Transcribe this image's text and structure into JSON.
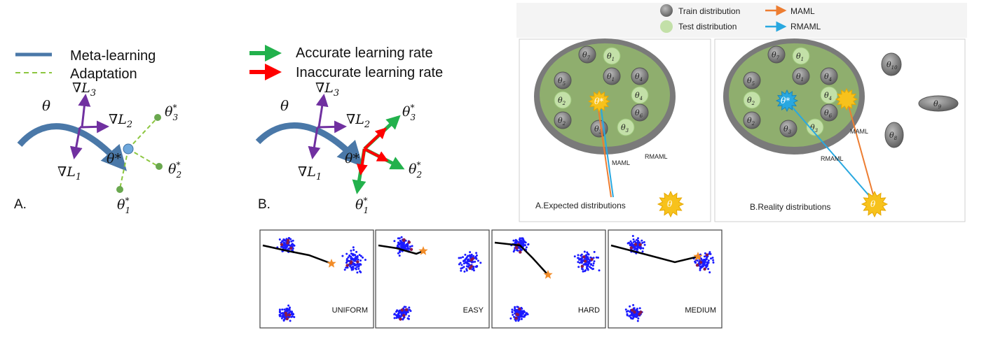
{
  "colors": {
    "meta": "#4a78a8",
    "adapt": "#8cc63f",
    "grad": "#7030a0",
    "accurate": "#22b14c",
    "inaccurate": "#ff0000",
    "train": "#6e6e6e",
    "test": "#c3e0a8",
    "maml": "#ed7d31",
    "rmaml": "#29a8e0",
    "star": "#f7c21c",
    "cluster": "#1b1bff",
    "trajectory": "#000000"
  },
  "panel_a": {
    "legend_meta": "Meta-learning",
    "legend_adapt": "Adaptation",
    "theta": "θ",
    "grad_l1": "∇L",
    "grad_l2": "∇L",
    "grad_l3": "∇L",
    "sub1": "1",
    "sub2": "2",
    "sub3": "3",
    "theta_star": "θ*",
    "t1": "θ",
    "t2": "θ",
    "t3": "θ",
    "star_sup": "*",
    "tag": "A."
  },
  "panel_b": {
    "legend_accurate": "Accurate learning rate",
    "legend_inaccurate": "Inaccurate learning rate",
    "theta": "θ",
    "grad_l1": "∇L",
    "grad_l2": "∇L",
    "grad_l3": "∇L",
    "theta_star": "θ*",
    "t1": "θ",
    "t2": "θ",
    "t3": "θ",
    "tag": "B."
  },
  "dist_legend": {
    "train": "Train distribution",
    "test": "Test distribution",
    "maml": "MAML",
    "rmaml": "RMAML"
  },
  "expected": {
    "caption": "A.Expected distributions",
    "maml": "MAML",
    "rmaml": "RMAML",
    "theta_star": "θ*",
    "theta": "θ"
  },
  "reality": {
    "caption": "B.Reality distributions",
    "maml": "MAML",
    "rmaml": "RMAML",
    "theta_star": "θ*",
    "theta": "θ"
  },
  "scatter_panels": [
    "UNIFORM",
    "EASY",
    "HARD",
    "MEDIUM"
  ]
}
